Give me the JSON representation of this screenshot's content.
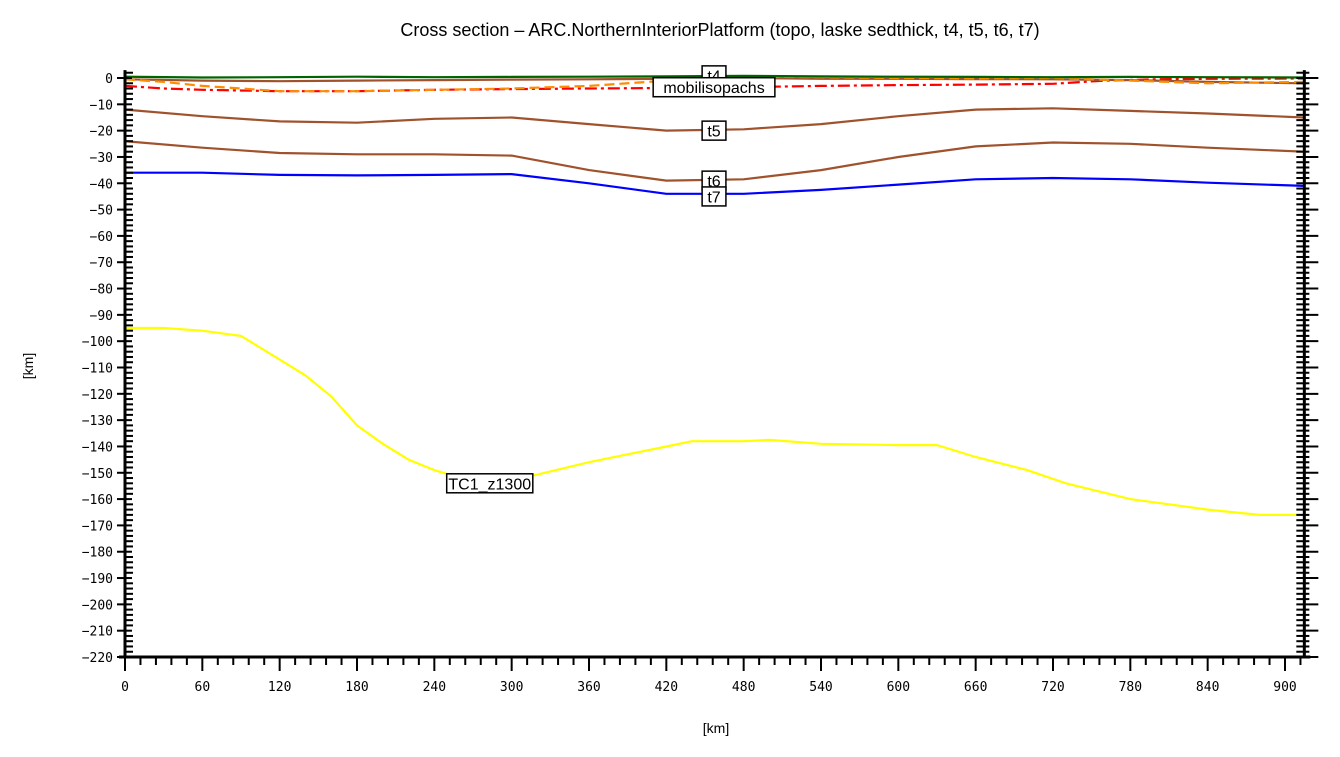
{
  "chart_data": {
    "type": "line",
    "title": "Cross section – ARC.NorthernInteriorPlatform (topo, laske sedthick, t4, t5, t6, t7)",
    "xlabel": "[km]",
    "ylabel": "[km]",
    "xlim": [
      0,
      915
    ],
    "ylim": [
      -220,
      3
    ],
    "xticks": [
      0,
      60,
      120,
      180,
      240,
      300,
      360,
      420,
      480,
      540,
      600,
      660,
      720,
      780,
      840,
      900
    ],
    "yticks": [
      0,
      -10,
      -20,
      -30,
      -40,
      -50,
      -60,
      -70,
      -80,
      -90,
      -100,
      -110,
      -120,
      -130,
      -140,
      -150,
      -160,
      -170,
      -180,
      -190,
      -200,
      -210,
      -220
    ],
    "grid": false,
    "legend": "none (inline labels)",
    "series": [
      {
        "name": "topo",
        "color": "#006400",
        "style": "solid",
        "x": [
          0,
          60,
          120,
          180,
          240,
          300,
          360,
          420,
          480,
          540,
          600,
          660,
          720,
          780,
          840,
          915
        ],
        "y": [
          0.5,
          0.2,
          0.3,
          0.5,
          0.3,
          0.4,
          0.5,
          0.6,
          0.8,
          0.6,
          0.5,
          0.4,
          0.3,
          0.4,
          0.3,
          0.2
        ]
      },
      {
        "name": "t4",
        "color": "#A0522D",
        "style": "solid",
        "label": "t4",
        "x": [
          0,
          60,
          120,
          180,
          240,
          300,
          360,
          420,
          480,
          540,
          600,
          660,
          720,
          780,
          840,
          915
        ],
        "y": [
          -0.5,
          -1.0,
          -1.2,
          -1.0,
          -0.8,
          -0.6,
          -0.5,
          -0.3,
          0.0,
          -0.3,
          -0.3,
          -0.4,
          -0.5,
          -0.8,
          -1.5,
          -2.0
        ]
      },
      {
        "name": "laske sedthick",
        "color": "#FF8C00",
        "style": "dashed",
        "x": [
          0,
          30,
          60,
          90,
          120,
          180,
          240,
          300,
          360,
          420,
          480,
          540,
          600,
          660,
          720,
          780,
          840,
          915
        ],
        "y": [
          -0.5,
          -1.5,
          -3.0,
          -4.0,
          -5.0,
          -5.0,
          -4.5,
          -4.0,
          -3.0,
          -1.0,
          0.5,
          0.3,
          0.0,
          -0.2,
          0.0,
          -1.0,
          -2.0,
          -1.5
        ]
      },
      {
        "name": "mobilisopachs",
        "color": "#FF0000",
        "style": "dashdot",
        "label": "mobilisopachs",
        "x": [
          0,
          30,
          60,
          120,
          180,
          240,
          300,
          360,
          420,
          480,
          540,
          600,
          660,
          720,
          760,
          800,
          840,
          915
        ],
        "y": [
          -3.0,
          -4.0,
          -4.5,
          -5.0,
          -5.0,
          -4.5,
          -4.2,
          -4.0,
          -3.8,
          -3.5,
          -3.0,
          -2.7,
          -2.5,
          -2.2,
          -1.0,
          -0.5,
          -0.3,
          -0.2
        ]
      },
      {
        "name": "t5",
        "color": "#A0522D",
        "style": "solid",
        "label": "t5",
        "x": [
          0,
          60,
          120,
          180,
          240,
          300,
          360,
          420,
          480,
          540,
          600,
          660,
          720,
          780,
          840,
          915
        ],
        "y": [
          -12,
          -14.5,
          -16.5,
          -17,
          -15.5,
          -15,
          -17.5,
          -20,
          -19.5,
          -17.5,
          -14.5,
          -12,
          -11.5,
          -12.5,
          -13.5,
          -15
        ]
      },
      {
        "name": "t6",
        "color": "#A0522D",
        "style": "solid",
        "label": "t6",
        "x": [
          0,
          60,
          120,
          180,
          240,
          300,
          360,
          420,
          480,
          540,
          600,
          660,
          720,
          780,
          840,
          915
        ],
        "y": [
          -24,
          -26.5,
          -28.5,
          -29,
          -29,
          -29.5,
          -35,
          -39,
          -38.5,
          -35,
          -30,
          -26,
          -24.5,
          -25,
          -26.5,
          -28
        ]
      },
      {
        "name": "t7",
        "color": "#0000FF",
        "style": "solid",
        "label": "t7",
        "x": [
          0,
          60,
          120,
          180,
          240,
          300,
          360,
          420,
          480,
          540,
          600,
          660,
          720,
          780,
          840,
          915
        ],
        "y": [
          -36,
          -36,
          -36.8,
          -37,
          -36.8,
          -36.5,
          -40,
          -44,
          -44,
          -42.5,
          -40.5,
          -38.5,
          -38,
          -38.5,
          -39.8,
          -41
        ]
      },
      {
        "name": "TC1_z1300",
        "color": "#FFFF00",
        "style": "solid",
        "label": "TC1_z1300",
        "x": [
          0,
          30,
          60,
          90,
          120,
          140,
          160,
          180,
          200,
          220,
          240,
          260,
          300,
          360,
          420,
          440,
          480,
          500,
          540,
          600,
          630,
          660,
          700,
          730,
          780,
          840,
          880,
          915
        ],
        "y": [
          -95,
          -95,
          -96,
          -98,
          -107,
          -113,
          -121,
          -132,
          -139,
          -145,
          -149,
          -152,
          -153,
          -146,
          -140,
          -138,
          -138,
          -137.5,
          -139,
          -139.5,
          -139.5,
          -144,
          -149,
          -154,
          -160,
          -164,
          -166,
          -166
        ]
      }
    ],
    "annotations": [
      {
        "text": "t4",
        "x": 457,
        "y": 1
      },
      {
        "text": "mobilisopachs",
        "x": 457,
        "y": -3.5
      },
      {
        "text": "t5",
        "x": 457,
        "y": -20
      },
      {
        "text": "t6",
        "x": 457,
        "y": -39
      },
      {
        "text": "t7",
        "x": 457,
        "y": -45
      },
      {
        "text": "TC1_z1300",
        "x": 283,
        "y": -154
      }
    ]
  },
  "labels": {
    "title": "Cross section – ARC.NorthernInteriorPlatform (topo, laske sedthick, t4, t5, t6, t7)",
    "xlabel": "[km]",
    "ylabel": "[km]"
  }
}
